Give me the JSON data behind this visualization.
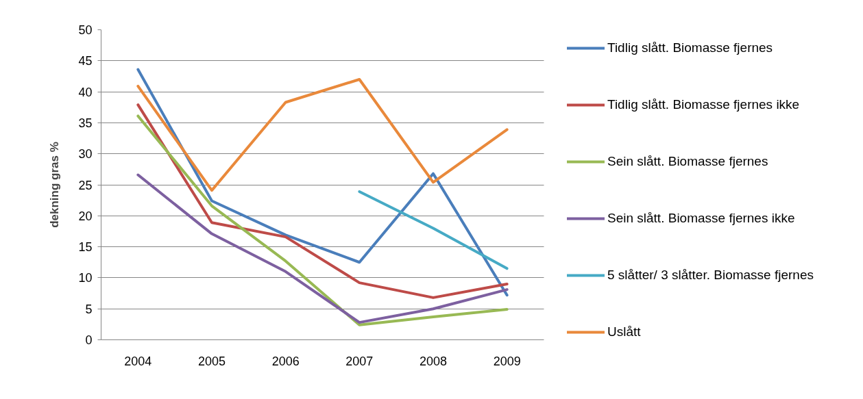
{
  "chart_data": {
    "type": "line",
    "ylabel": "dekning gras %",
    "categories": [
      "2004",
      "2005",
      "2006",
      "2007",
      "2008",
      "2009"
    ],
    "ylim": [
      0,
      50
    ],
    "yticks": [
      0,
      5,
      10,
      15,
      20,
      25,
      30,
      35,
      40,
      45,
      50
    ],
    "grid": "y",
    "legend": "right",
    "line_style": "solid",
    "series": [
      {
        "name": "Tidlig slått. Biomasse fjernes",
        "color": "#4a7ebb",
        "values": [
          43.6,
          22.4,
          16.9,
          12.5,
          26.8,
          7.2
        ]
      },
      {
        "name": "Tidlig slått. Biomasse fjernes ikke",
        "color": "#be4b48",
        "values": [
          37.9,
          18.9,
          16.6,
          9.2,
          6.8,
          9.0
        ]
      },
      {
        "name": "Sein slått. Biomasse fjernes",
        "color": "#98b954",
        "values": [
          36.1,
          21.6,
          12.7,
          2.4,
          3.7,
          4.9
        ]
      },
      {
        "name": "Sein slått. Biomasse fjernes ikke",
        "color": "#7d60a0",
        "values": [
          26.6,
          17.1,
          11.0,
          2.8,
          5.0,
          8.1
        ]
      },
      {
        "name": "5 slåtter/ 3 slåtter. Biomasse fjernes",
        "color": "#46aac5",
        "values": [
          null,
          null,
          null,
          23.9,
          18.0,
          11.5
        ]
      },
      {
        "name": "Uslått",
        "color": "#e9893b",
        "values": [
          40.9,
          24.1,
          38.3,
          42.0,
          25.4,
          33.9
        ]
      }
    ]
  }
}
